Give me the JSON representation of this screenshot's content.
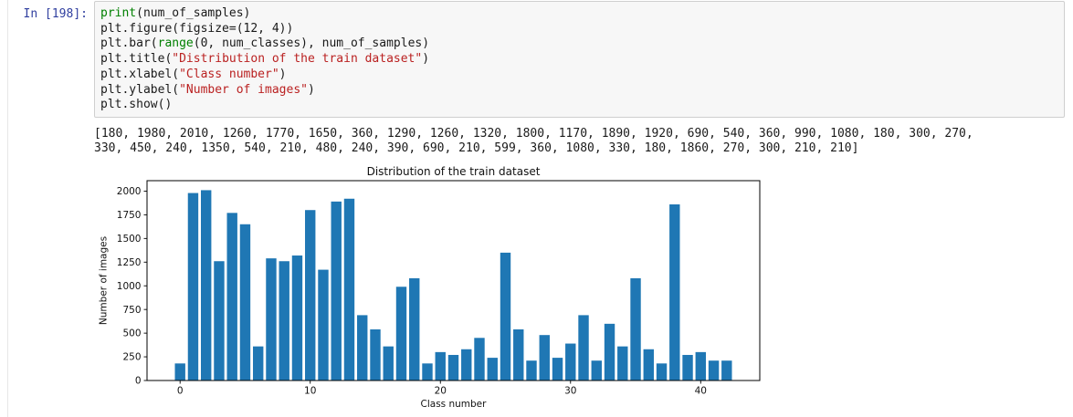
{
  "notebook": {
    "prompt": "In [198]:",
    "code": {
      "l1a": "print",
      "l1b": "(num_of_samples)",
      "l2": "plt.figure(figsize=(12, 4))",
      "l3a": "plt.bar(",
      "l3b": "range",
      "l3c": "(0, num_classes), num_of_samples)",
      "l4a": "plt.title(",
      "l4b": "\"Distribution of the train dataset\"",
      "l4c": ")",
      "l5a": "plt.xlabel(",
      "l5b": "\"Class number\"",
      "l5c": ")",
      "l6a": "plt.ylabel(",
      "l6b": "\"Number of images\"",
      "l6c": ")",
      "l7": "plt.show()"
    },
    "output": {
      "line1": "[180, 1980, 2010, 1260, 1770, 1650, 360, 1290, 1260, 1320, 1800, 1170, 1890, 1920, 690, 540, 360, 990, 1080, 180, 300, 270,",
      "line2": "330, 450, 240, 1350, 540, 210, 480, 240, 390, 690, 210, 599, 360, 1080, 330, 180, 1860, 270, 300, 210, 210]"
    }
  },
  "colors": {
    "prompt_blue": "#303F9F",
    "builtin_green": "#008000",
    "string_red": "#BA2121",
    "cell_bg": "#F7F7F7",
    "cell_border": "#CFCFCF",
    "axis_text": "#111111"
  },
  "chart_data": {
    "type": "bar",
    "title": "Distribution of the train dataset",
    "xlabel": "Class number",
    "ylabel": "Number of images",
    "x": [
      0,
      1,
      2,
      3,
      4,
      5,
      6,
      7,
      8,
      9,
      10,
      11,
      12,
      13,
      14,
      15,
      16,
      17,
      18,
      19,
      20,
      21,
      22,
      23,
      24,
      25,
      26,
      27,
      28,
      29,
      30,
      31,
      32,
      33,
      34,
      35,
      36,
      37,
      38,
      39,
      40,
      41,
      42
    ],
    "values": [
      180,
      1980,
      2010,
      1260,
      1770,
      1650,
      360,
      1290,
      1260,
      1320,
      1800,
      1170,
      1890,
      1920,
      690,
      540,
      360,
      990,
      1080,
      180,
      300,
      270,
      330,
      450,
      240,
      1350,
      540,
      210,
      480,
      240,
      390,
      690,
      210,
      599,
      360,
      1080,
      330,
      180,
      1860,
      270,
      300,
      210,
      210
    ],
    "xticks": [
      0,
      10,
      20,
      30,
      40
    ],
    "yticks": [
      0,
      250,
      500,
      750,
      1000,
      1250,
      1500,
      1750,
      2000
    ],
    "xlim": [
      -2.54,
      44.54
    ],
    "ylim": [
      0,
      2110.5
    ],
    "bar_width": 0.8,
    "bar_color": "#1F77B4",
    "grid": false,
    "legend": "none",
    "figsize": [
      12,
      4
    ]
  }
}
